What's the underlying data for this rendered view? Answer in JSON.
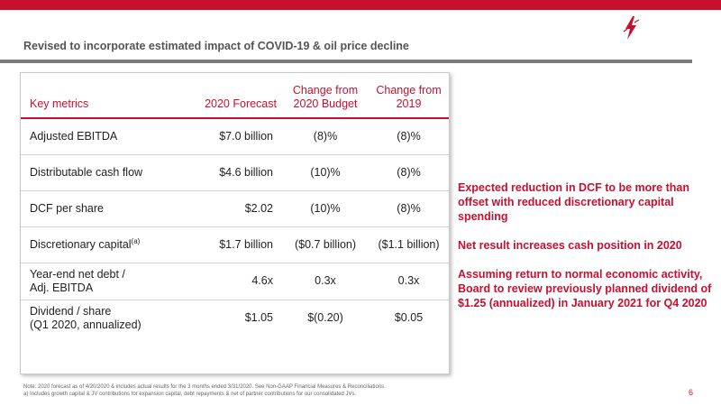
{
  "header": {
    "subtitle": "Revised to incorporate estimated impact of COVID-19 & oil price decline",
    "accent_color": "#c8102e",
    "logo_icon": "lightning-logo-icon"
  },
  "table": {
    "headers": {
      "metric": "Key metrics",
      "forecast": "2020 Forecast",
      "budget_line1": "Change from",
      "budget_line2": "2020 Budget",
      "prior_line1": "Change from",
      "prior_line2": "2019"
    },
    "rows": [
      {
        "metric": "Adjusted EBITDA",
        "forecast": "$7.0 billion",
        "budget": "(8)%",
        "prior": "(8)%"
      },
      {
        "metric": "Distributable cash flow",
        "forecast": "$4.6 billion",
        "budget": "(10)%",
        "prior": "(8)%"
      },
      {
        "metric": "DCF per share",
        "forecast": "$2.02",
        "budget": "(10)%",
        "prior": "(8)%"
      },
      {
        "metric": "Discretionary capital",
        "metric_sup": "(a)",
        "forecast": "$1.7 billion",
        "budget": "($0.7 billion)",
        "prior": "($1.1 billion)"
      },
      {
        "metric_line1": "Year-end net debt /",
        "metric_line2": "Adj. EBITDA",
        "forecast": "4.6x",
        "budget": "0.3x",
        "prior": "0.3x"
      },
      {
        "metric_line1": "Dividend / share",
        "metric_line2": "(Q1 2020, annualized)",
        "forecast": "$1.05",
        "budget": "$(0.20)",
        "prior": "$0.05"
      }
    ]
  },
  "bullets": [
    "Expected reduction in DCF to be more than offset with reduced discretionary capital spending",
    "Net result increases cash position in 2020",
    "Assuming return to normal economic activity, Board to review previously planned dividend of $1.25 (annualized) in January 2021 for Q4 2020"
  ],
  "notes": {
    "line1": "Note: 2020 forecast as of 4/20/2020 & includes actual results for the 3 months ended 3/31/2020. See Non-GAAP Financial Measures & Reconciliations.",
    "line2": "a)  Includes growth capital & JV contributions for expansion capital, debt repayments & net of partner contributions for our consolidated JVs."
  },
  "page_number": "6"
}
